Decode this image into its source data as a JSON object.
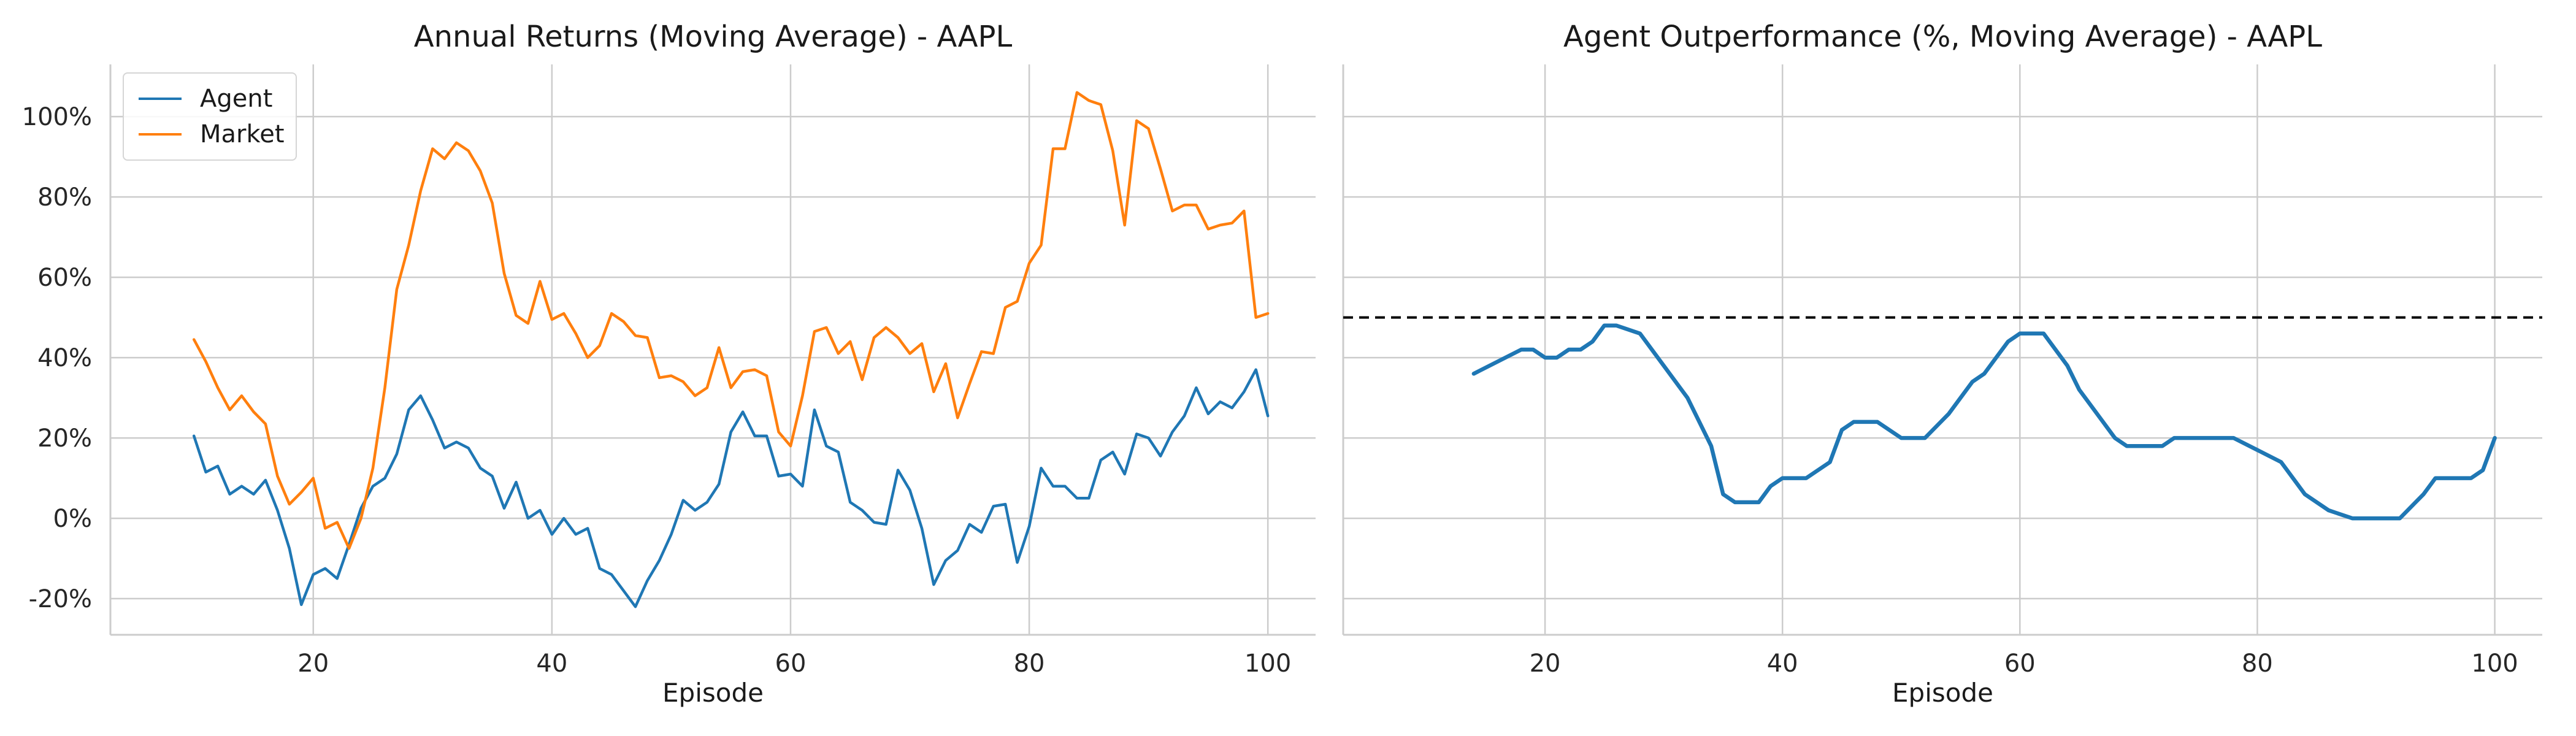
{
  "chart_data": [
    {
      "type": "line",
      "title": "Annual Returns (Moving Average) - AAPL",
      "xlabel": "Episode",
      "ylabel": "",
      "xlim": [
        3,
        104
      ],
      "ylim": [
        -29,
        113
      ],
      "xticks": [
        20,
        40,
        60,
        80,
        100
      ],
      "yticks": [
        -20,
        0,
        20,
        40,
        60,
        80,
        100
      ],
      "ytick_format": "percent",
      "grid": true,
      "legend": "top-left",
      "series": [
        {
          "name": "Agent",
          "color": "#1f77b4",
          "x_start": 10,
          "values": [
            20.5,
            11.5,
            13,
            6,
            8,
            6,
            9.5,
            2,
            -7.5,
            -21.5,
            -14,
            -12.5,
            -15,
            -6.5,
            2.5,
            8,
            10,
            16,
            27,
            30.5,
            24.5,
            17.5,
            19,
            17.5,
            12.5,
            10.5,
            2.5,
            9,
            0,
            2,
            -4,
            0,
            -4,
            -2.5,
            -12.5,
            -14,
            -18,
            -22,
            -15.5,
            -10.5,
            -4,
            4.5,
            2,
            4,
            8.5,
            21.5,
            26.5,
            20.5,
            20.5,
            10.5,
            11,
            8,
            27,
            18,
            16.5,
            4,
            2,
            -1,
            -1.5,
            12,
            7,
            -2.5,
            -16.5,
            -10.5,
            -8,
            -1.5,
            -3.5,
            3,
            3.5,
            -11,
            -2,
            12.5,
            8,
            8,
            5,
            5,
            14.5,
            16.5,
            11,
            21,
            20,
            15.5,
            21.5,
            25.5,
            32.5,
            26,
            29,
            27.5,
            31.5,
            37,
            25.5
          ]
        },
        {
          "name": "Market",
          "color": "#ff7f0e",
          "x_start": 10,
          "values": [
            44.5,
            39,
            32.5,
            27,
            30.5,
            26.5,
            23.5,
            10.5,
            3.5,
            6.5,
            10,
            -2.5,
            -1,
            -7.5,
            0,
            12.5,
            32.5,
            57,
            68,
            81.5,
            92,
            89.5,
            93.5,
            91.5,
            86.5,
            78.5,
            61,
            50.5,
            48.5,
            59,
            49.5,
            51,
            46,
            40,
            43,
            51,
            49,
            45.5,
            45,
            35,
            35.5,
            34,
            30.5,
            32.5,
            42.5,
            32.5,
            36.5,
            37,
            35.5,
            21.5,
            18,
            30.5,
            46.5,
            47.5,
            41,
            44,
            34.5,
            45,
            47.5,
            45,
            41,
            43.5,
            31.5,
            38.5,
            25,
            33.5,
            41.5,
            41,
            52.5,
            54,
            63.5,
            68,
            92,
            92,
            106,
            104,
            103,
            91.5,
            73,
            99,
            97,
            87,
            76.5,
            78,
            78,
            72,
            73,
            73.5,
            76.5,
            50,
            51
          ]
        }
      ]
    },
    {
      "type": "line",
      "title": "Agent Outperformance (%, Moving Average) - AAPL",
      "xlabel": "Episode",
      "ylabel": "",
      "xlim": [
        3,
        104
      ],
      "ylim": [
        -29,
        113
      ],
      "xticks": [
        20,
        40,
        60,
        80,
        100
      ],
      "yticks": [
        -20,
        0,
        20,
        40,
        60,
        80,
        100
      ],
      "grid": true,
      "legend": "none",
      "reference_line": {
        "y": 50,
        "style": "dashed",
        "color": "#000000"
      },
      "series": [
        {
          "color": "#1f77b4",
          "x": [
            14,
            16,
            18,
            19,
            20,
            21,
            22,
            23,
            24,
            25,
            26,
            28,
            30,
            32,
            34,
            35,
            36,
            38,
            39,
            40,
            42,
            44,
            45,
            46,
            47,
            48,
            50,
            52,
            54,
            56,
            57,
            58,
            59,
            60,
            61,
            62,
            64,
            65,
            66,
            68,
            69,
            70,
            72,
            73,
            74,
            76,
            78,
            80,
            82,
            84,
            86,
            88,
            90,
            92,
            94,
            95,
            96,
            98,
            99,
            100
          ],
          "values": [
            36,
            39,
            42,
            42,
            40,
            40,
            42,
            42,
            44,
            48,
            48,
            46,
            38,
            30,
            18,
            6,
            4,
            4,
            8,
            10,
            10,
            14,
            22,
            24,
            24,
            24,
            20,
            20,
            26,
            34,
            36,
            40,
            44,
            46,
            46,
            46,
            38,
            32,
            28,
            20,
            18,
            18,
            18,
            20,
            20,
            20,
            20,
            17,
            14,
            6,
            2,
            0,
            0,
            0,
            6,
            10,
            10,
            10,
            12,
            20
          ]
        }
      ]
    }
  ]
}
